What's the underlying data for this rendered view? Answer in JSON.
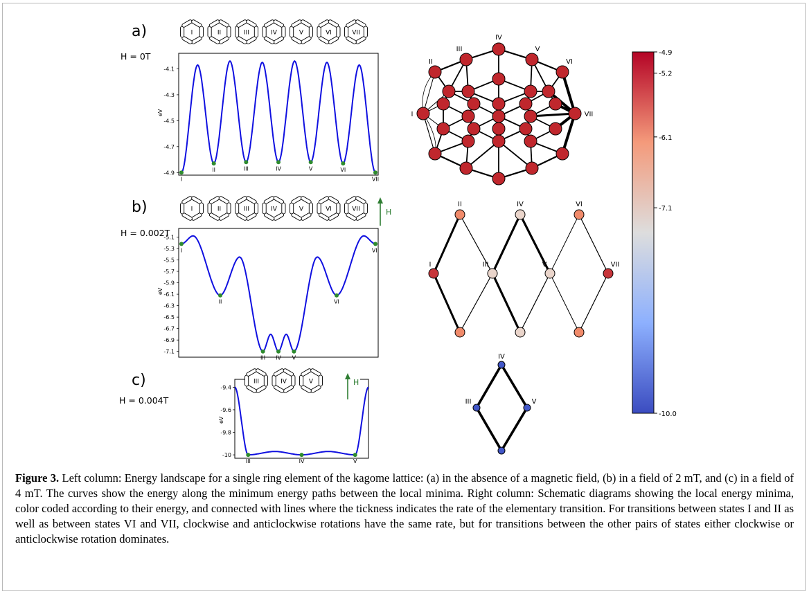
{
  "panels": [
    {
      "label": "a)",
      "field": "H = 0T",
      "ylabel": "eV",
      "ring_labels": [
        "I",
        "II",
        "III",
        "IV",
        "V",
        "VI",
        "VII"
      ],
      "show_arrow": false,
      "curve": {
        "ylim": [
          -4.92,
          -3.98
        ],
        "yticks": [
          "-4.1",
          "-4.3",
          "-4.5",
          "-4.7",
          "-4.9"
        ],
        "minima_x": [
          0.0,
          0.1667,
          0.3333,
          0.5,
          0.6667,
          0.8333,
          1.0
        ],
        "minima_y": [
          -4.9,
          -4.83,
          -4.82,
          -4.82,
          -4.82,
          -4.83,
          -4.9
        ],
        "maxima_x": [
          0.0833,
          0.25,
          0.4167,
          0.5833,
          0.75,
          0.9167
        ],
        "maxima_y": [
          -4.07,
          -4.04,
          -4.05,
          -4.04,
          -4.05,
          -4.07
        ],
        "minima_labels": [
          "I",
          "II",
          "III",
          "IV",
          "V",
          "VI",
          "VII"
        ]
      }
    },
    {
      "label": "b)",
      "field": "H = 0.002T",
      "ylabel": "eV",
      "ring_labels": [
        "I",
        "II",
        "III",
        "IV",
        "V",
        "VI",
        "VII"
      ],
      "show_arrow": true,
      "arrow_label": "H",
      "curve": {
        "ylim": [
          -7.2,
          -4.95
        ],
        "yticks": [
          "-5.1",
          "-5.3",
          "-5.5",
          "-5.7",
          "-5.9",
          "-6.1",
          "-6.3",
          "-6.5",
          "-6.7",
          "-6.9",
          "-7.1"
        ],
        "minima_x": [
          0.0,
          0.2,
          0.42,
          0.5,
          0.58,
          0.8,
          1.0
        ],
        "minima_y": [
          -5.22,
          -6.12,
          -7.1,
          -7.1,
          -7.1,
          -6.12,
          -5.22
        ],
        "maxima_x": [
          0.06,
          0.3,
          0.46,
          0.54,
          0.7,
          0.94
        ],
        "maxima_y": [
          -5.08,
          -5.45,
          -6.8,
          -6.8,
          -5.45,
          -5.08
        ],
        "minima_labels": [
          "I",
          "II",
          "III",
          "IV",
          "V",
          "VI",
          "VII"
        ]
      }
    },
    {
      "label": "c)",
      "field": "H = 0.004T",
      "ylabel": "eV",
      "ring_labels": [
        "III",
        "IV",
        "V"
      ],
      "show_arrow": true,
      "arrow_label": "H",
      "curve": {
        "ylim": [
          -10.03,
          -9.33
        ],
        "yticks": [
          "-9.4",
          "-9.6",
          "-9.8",
          "-10"
        ],
        "minima_x": [
          0.1,
          0.5,
          0.9
        ],
        "minima_y": [
          -10.0,
          -10.0,
          -10.0
        ],
        "maxima_x": [
          0.3,
          0.7
        ],
        "maxima_y": [
          -9.97,
          -9.97
        ],
        "edge_y": -9.4,
        "minima_labels": [
          "III",
          "IV",
          "V"
        ]
      }
    }
  ],
  "graph_a": {
    "labels": [
      "I",
      "II",
      "III",
      "IV",
      "V",
      "VI",
      "VII"
    ],
    "node_color": "#c0272d"
  },
  "graph_b": {
    "labels": [
      "I",
      "II",
      "III",
      "IV",
      "V",
      "VI",
      "VII"
    ],
    "colors": [
      "#c7353a",
      "#f08a6a",
      "#ead5cb",
      "#ead5cb",
      "#ead5cb",
      "#f08a6a",
      "#c7353a"
    ],
    "extra_colors": [
      "#f08a6a",
      "#ead5cb",
      "#f08a6a"
    ]
  },
  "graph_c": {
    "labels": [
      "IV",
      "III",
      "V"
    ],
    "node_color": "#4257c8"
  },
  "colorbar": {
    "min": -10.0,
    "max": -4.9,
    "ticks": [
      "-4.9",
      "-5.2",
      "-6.1",
      "-7.1",
      "-10.0"
    ],
    "tick_values": [
      -4.9,
      -5.2,
      -6.1,
      -7.1,
      -10.0
    ]
  },
  "caption": {
    "title": "Figure 3.",
    "text": "Left column: Energy landscape for a single ring element of the kagome lattice: (a) in the absence of a magnetic field, (b) in a field of 2 mT, and (c) in a field of 4 mT. The curves show the energy along the minimum energy paths between the local minima. Right column: Schematic diagrams showing the local energy minima, color coded according to their energy, and connected with lines where the tickness indicates the rate of the elementary transition. For transitions between states I and II as well as between states VI and VII, clockwise and anticlockwise rotations have the same rate, but for transitions between the other pairs of states either clockwise or anticlockwise rotation dominates."
  }
}
